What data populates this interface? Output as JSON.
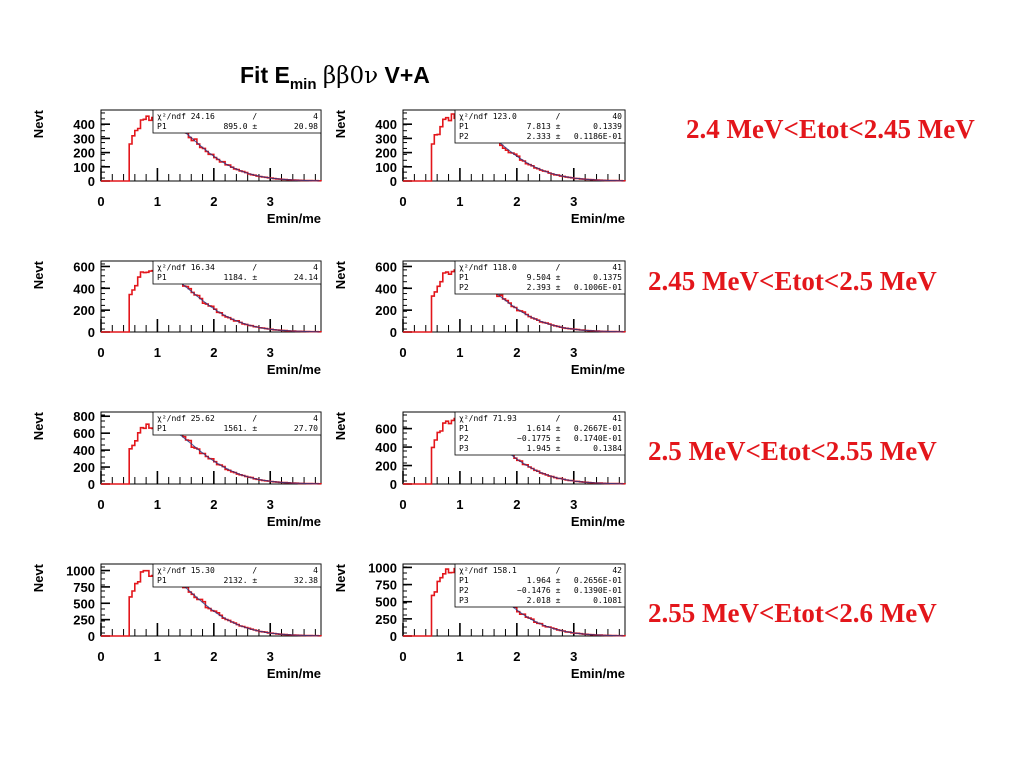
{
  "title": {
    "main": "Fit E",
    "sub": "min",
    "greek": "ββ0ν",
    "tail": "V+A"
  },
  "row_labels": [
    "2.4 MeV<Etot<2.45 MeV",
    "2.45 MeV<Etot<2.5 MeV",
    "2.5 MeV<Etot<2.55 MeV",
    "2.55 MeV<Etot<2.6 MeV"
  ],
  "colors": {
    "hist": "#e3161b",
    "fit": "#1a3a8c",
    "text": "#000000",
    "label": "#e3161b"
  },
  "chart_data": [
    {
      "type": "histogram",
      "xlabel": "Emin/me",
      "ylabel": "Nevt",
      "xlim": [
        0,
        3.9
      ],
      "ylim": [
        0,
        500
      ],
      "xticks": [
        0,
        1,
        2,
        3
      ],
      "yticks": [
        0,
        100,
        200,
        300,
        400
      ],
      "peak": 450,
      "stats": [
        [
          "χ²/ndf 24.16",
          "/",
          "4"
        ],
        [
          "P1",
          "895.0 ±",
          "20.98"
        ]
      ]
    },
    {
      "type": "histogram",
      "xlabel": "Emin/me",
      "ylabel": "Nevt",
      "xlim": [
        0,
        3.9
      ],
      "ylim": [
        0,
        500
      ],
      "xticks": [
        0,
        1,
        2,
        3
      ],
      "yticks": [
        0,
        100,
        200,
        300,
        400
      ],
      "peak": 450,
      "stats": [
        [
          "χ²/ndf 123.0",
          "/",
          "40"
        ],
        [
          "P1",
          "7.813 ±",
          "0.1339"
        ],
        [
          "P2",
          "2.333 ±",
          "0.1186E-01"
        ]
      ]
    },
    {
      "type": "histogram",
      "xlabel": "Emin/me",
      "ylabel": "Nevt",
      "xlim": [
        0,
        3.9
      ],
      "ylim": [
        0,
        650
      ],
      "xticks": [
        0,
        1,
        2,
        3
      ],
      "yticks": [
        0,
        200,
        400,
        600
      ],
      "peak": 550,
      "stats": [
        [
          "χ²/ndf 16.34",
          "/",
          "4"
        ],
        [
          "P1",
          "1184. ±",
          "24.14"
        ]
      ]
    },
    {
      "type": "histogram",
      "xlabel": "Emin/me",
      "ylabel": "Nevt",
      "xlim": [
        0,
        3.9
      ],
      "ylim": [
        0,
        650
      ],
      "xticks": [
        0,
        1,
        2,
        3
      ],
      "yticks": [
        0,
        200,
        400,
        600
      ],
      "peak": 550,
      "stats": [
        [
          "χ²/ndf 118.0",
          "/",
          "41"
        ],
        [
          "P1",
          "9.504 ±",
          "0.1375"
        ],
        [
          "P2",
          "2.393 ±",
          "0.1006E-01"
        ]
      ]
    },
    {
      "type": "histogram",
      "xlabel": "Emin/me",
      "ylabel": "Nevt",
      "xlim": [
        0,
        3.9
      ],
      "ylim": [
        0,
        850
      ],
      "xticks": [
        0,
        1,
        2,
        3
      ],
      "yticks": [
        0,
        200,
        400,
        600,
        800
      ],
      "peak": 700,
      "stats": [
        [
          "χ²/ndf 25.62",
          "/",
          "4"
        ],
        [
          "P1",
          "1561. ±",
          "27.70"
        ]
      ]
    },
    {
      "type": "histogram",
      "xlabel": "Emin/me",
      "ylabel": "Nevt",
      "xlim": [
        0,
        3.9
      ],
      "ylim": [
        0,
        780
      ],
      "xticks": [
        0,
        1,
        2,
        3
      ],
      "yticks": [
        0,
        200,
        400,
        600
      ],
      "peak": 700,
      "stats": [
        [
          "χ²/ndf 71.93",
          "/",
          "41"
        ],
        [
          "P1",
          "1.614 ±",
          "0.2667E-01"
        ],
        [
          "P2",
          "−0.1775 ±",
          "0.1740E-01"
        ],
        [
          "P3",
          "1.945 ±",
          "0.1384"
        ]
      ]
    },
    {
      "type": "histogram",
      "xlabel": "Emin/me",
      "ylabel": "Nevt",
      "xlim": [
        0,
        3.9
      ],
      "ylim": [
        0,
        1100
      ],
      "xticks": [
        0,
        1,
        2,
        3
      ],
      "yticks": [
        0,
        250,
        500,
        750,
        1000
      ],
      "peak": 980,
      "stats": [
        [
          "χ²/ndf 15.30",
          "/",
          "4"
        ],
        [
          "P1",
          "2132. ±",
          "32.38"
        ]
      ]
    },
    {
      "type": "histogram",
      "xlabel": "Emin/me",
      "ylabel": "Nevt",
      "xlim": [
        0,
        3.9
      ],
      "ylim": [
        0,
        1050
      ],
      "xticks": [
        0,
        1,
        2,
        3
      ],
      "yticks": [
        0,
        250,
        500,
        750,
        1000
      ],
      "peak": 980,
      "stats": [
        [
          "χ²/ndf 158.1",
          "/",
          "42"
        ],
        [
          "P1",
          "1.964 ±",
          "0.2656E-01"
        ],
        [
          "P2",
          "−0.1476 ±",
          "0.1390E-01"
        ],
        [
          "P3",
          "2.018 ±",
          "0.1081"
        ]
      ]
    }
  ]
}
